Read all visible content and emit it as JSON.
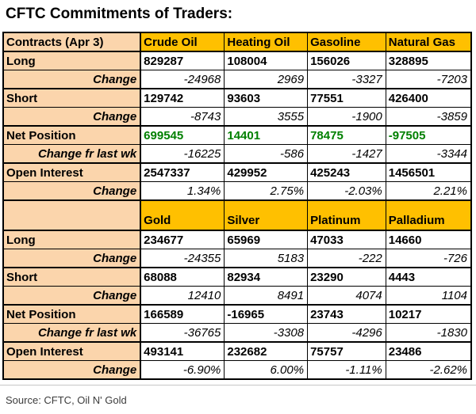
{
  "title": "CFTC Commitments of Traders:",
  "source_note": "Source: CFTC, Oil N' Gold",
  "colors": {
    "header_bg": "#FFC000",
    "label_bg": "#FBD5AC",
    "net_position_green": "#008000",
    "grid": "#000000"
  },
  "chart_data": [
    {
      "type": "table",
      "title": "Contracts (Apr 3)",
      "columns": [
        "Crude Oil",
        "Heating Oil",
        "Gasoline",
        "Natural Gas"
      ],
      "rows": [
        {
          "label": "Long",
          "kind": "value",
          "values": [
            "829287",
            "108004",
            "156026",
            "328895"
          ]
        },
        {
          "label": "Change",
          "kind": "change",
          "values": [
            "-24968",
            "2969",
            "-3327",
            "-7203"
          ]
        },
        {
          "label": "Short",
          "kind": "value",
          "values": [
            "129742",
            "93603",
            "77551",
            "426400"
          ]
        },
        {
          "label": "Change",
          "kind": "change",
          "values": [
            "-8743",
            "3555",
            "-1900",
            "-3859"
          ]
        },
        {
          "label": "Net Position",
          "kind": "value",
          "color": "green",
          "values": [
            "699545",
            "14401",
            "78475",
            "-97505"
          ]
        },
        {
          "label": "Change fr last wk",
          "kind": "change",
          "values": [
            "-16225",
            "-586",
            "-1427",
            "-3344"
          ]
        },
        {
          "label": "Open Interest",
          "kind": "value",
          "values": [
            "2547337",
            "429952",
            "425243",
            "1456501"
          ]
        },
        {
          "label": "Change",
          "kind": "change",
          "values": [
            "1.34%",
            "2.75%",
            "-2.03%",
            "2.21%"
          ]
        }
      ]
    },
    {
      "type": "table",
      "title": "",
      "columns": [
        "Gold",
        "Silver",
        "Platinum",
        "Palladium"
      ],
      "rows": [
        {
          "label": "Long",
          "kind": "value",
          "values": [
            "234677",
            "65969",
            "47033",
            "14660"
          ]
        },
        {
          "label": "Change",
          "kind": "change",
          "values": [
            "-24355",
            "5183",
            "-222",
            "-726"
          ]
        },
        {
          "label": "Short",
          "kind": "value",
          "values": [
            "68088",
            "82934",
            "23290",
            "4443"
          ]
        },
        {
          "label": "Change",
          "kind": "change",
          "values": [
            "12410",
            "8491",
            "4074",
            "1104"
          ]
        },
        {
          "label": "Net Position",
          "kind": "value",
          "values": [
            "166589",
            "-16965",
            "23743",
            "10217"
          ]
        },
        {
          "label": "Change fr last wk",
          "kind": "change",
          "values": [
            "-36765",
            "-3308",
            "-4296",
            "-1830"
          ]
        },
        {
          "label": "Open Interest",
          "kind": "value",
          "values": [
            "493141",
            "232682",
            "75757",
            "23486"
          ]
        },
        {
          "label": "Change",
          "kind": "change",
          "values": [
            "-6.90%",
            "6.00%",
            "-1.11%",
            "-2.62%"
          ]
        }
      ]
    }
  ]
}
